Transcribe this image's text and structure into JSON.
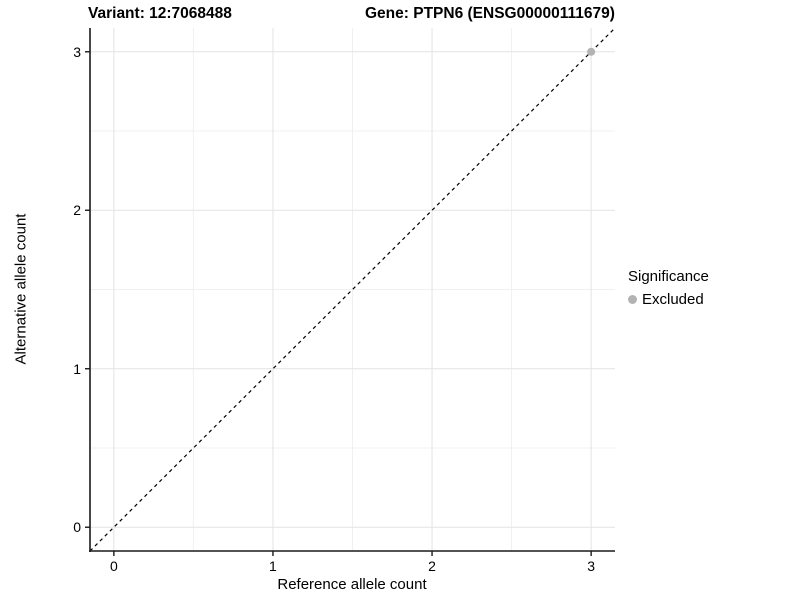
{
  "figure": {
    "title_variant": "Variant: 12:7068488",
    "title_gene": "Gene: PTPN6 (ENSG00000111679)"
  },
  "chart_data": {
    "type": "scatter",
    "title": "Variant: 12:7068488    Gene: PTPN6 (ENSG00000111679)",
    "xlabel": "Reference allele count",
    "ylabel": "Alternative allele count",
    "xlim": [
      -0.15,
      3.15
    ],
    "ylim": [
      -0.15,
      3.15
    ],
    "x_ticks": [
      0,
      1,
      2,
      3
    ],
    "y_ticks": [
      0,
      1,
      2,
      3
    ],
    "x_minor_ticks": [
      0.5,
      1.5,
      2.5
    ],
    "y_minor_ticks": [
      0.5,
      1.5,
      2.5
    ],
    "grid": "major+minor",
    "points": [
      {
        "x": 3,
        "y": 3,
        "series": "Excluded"
      }
    ],
    "reference_line": {
      "kind": "identity",
      "style": "dashed",
      "from": [
        -0.15,
        -0.15
      ],
      "to": [
        3.15,
        3.15
      ]
    },
    "legend": {
      "title": "Significance",
      "position": "right",
      "entries": [
        {
          "label": "Excluded",
          "color": "#b3b3b3"
        }
      ]
    },
    "colors": {
      "point": "#b3b3b3",
      "grid_major": "#e3e3e3",
      "grid_minor": "#f0f0f0",
      "axis": "#1a1a1a",
      "reference_line": "#000000",
      "background": "#ffffff"
    }
  }
}
